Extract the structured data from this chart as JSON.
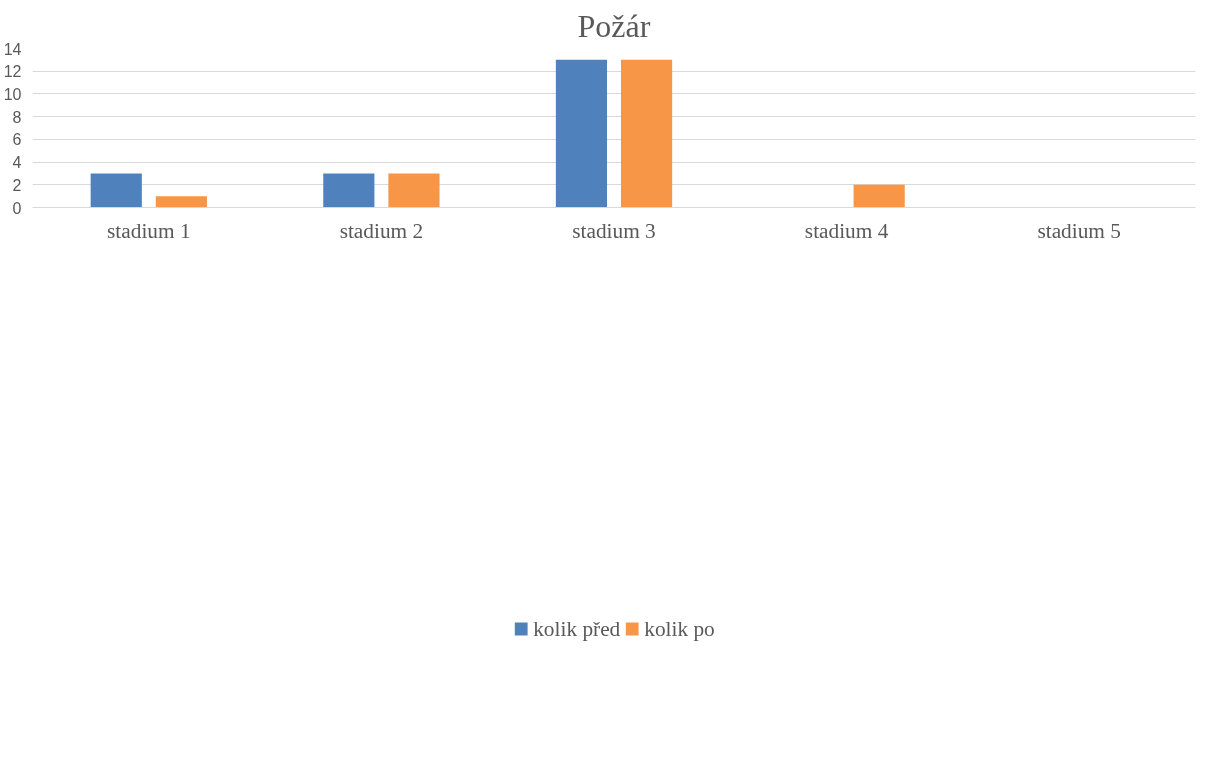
{
  "chart_data": {
    "type": "bar",
    "title": "Požár",
    "categories": [
      "stadium 1",
      "stadium 2",
      "stadium 3",
      "stadium 4",
      "stadium 5"
    ],
    "series": [
      {
        "name": "kolik před",
        "color": "#4f81bd",
        "values": [
          3,
          3,
          13,
          0,
          0
        ]
      },
      {
        "name": "kolik po",
        "color": "#f79646",
        "values": [
          1,
          3,
          13,
          2,
          0
        ]
      }
    ],
    "ylim": [
      0,
      14
    ],
    "yticks": [
      0,
      2,
      4,
      6,
      8,
      10,
      12,
      14
    ],
    "grid": "y",
    "legend": "bottom"
  }
}
